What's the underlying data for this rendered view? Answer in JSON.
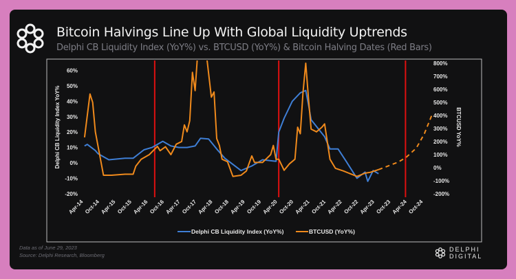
{
  "header": {
    "title": "Bitcoin Halvings Line Up With Global Liquidity Uptrends",
    "subtitle": "Delphi CB Liquidity Index (YoY%) vs. BTCUSD (YoY%) & Bitcoin Halving Dates (Red Bars)"
  },
  "footer": {
    "date_note": "Data as of June 29, 2023",
    "source": "Source: Delphi Research, Bloomberg",
    "brand": "DELPHI DIGITAL"
  },
  "colors": {
    "liquidity": "#3f7fd6",
    "btc": "#f08a1c",
    "halving": "#e01010",
    "background": "#111112",
    "page": "#d77fbe"
  },
  "chart_data": {
    "type": "line",
    "title": "Bitcoin Halvings Line Up With Global Liquidity Uptrends",
    "ylabel_left": "Delphi CB Liquidity Index YoY%",
    "ylabel_right": "BTCUSD YoY%",
    "ylim_left": [
      -20,
      60
    ],
    "ylim_right": [
      -200,
      800
    ],
    "yticks_left": [
      "60%",
      "50%",
      "40%",
      "30%",
      "20%",
      "10%",
      "0%",
      "-10%",
      "-20%"
    ],
    "yticks_right": [
      "800%",
      "700%",
      "600%",
      "500%",
      "400%",
      "300%",
      "200%",
      "100%",
      "0%",
      "-100%",
      "-200%"
    ],
    "xticks": [
      "Apr-14",
      "Oct-14",
      "Apr-15",
      "Oct-15",
      "Apr-16",
      "Oct-16",
      "Apr-17",
      "Oct-17",
      "Apr-18",
      "Oct-18",
      "Apr-19",
      "Oct-19",
      "Apr-20",
      "Oct-20",
      "Apr-21",
      "Oct-21",
      "Apr-22",
      "Oct-22",
      "Apr-23",
      "Oct-23",
      "Apr-24",
      "Oct-24"
    ],
    "x_start": "2014-04",
    "legend": [
      "Delphi CB Liquidity Index (YoY%)",
      "BTCUSD (YoY%)"
    ],
    "legend_position": "bottom",
    "halvings": [
      "2016-07",
      "2020-05",
      "2024-04"
    ],
    "series": [
      {
        "name": "Delphi CB Liquidity Index (YoY%)",
        "axis": "left",
        "points": [
          [
            "2014-05",
            11
          ],
          [
            "2014-06",
            12
          ],
          [
            "2014-09",
            8
          ],
          [
            "2014-10",
            6
          ],
          [
            "2015-02",
            2
          ],
          [
            "2015-05",
            2.5
          ],
          [
            "2015-08",
            3
          ],
          [
            "2015-11",
            3
          ],
          [
            "2016-03",
            8.5
          ],
          [
            "2016-06",
            10
          ],
          [
            "2016-08",
            12
          ],
          [
            "2016-10",
            14
          ],
          [
            "2017-01",
            11
          ],
          [
            "2017-04",
            10
          ],
          [
            "2017-07",
            10
          ],
          [
            "2017-10",
            11
          ],
          [
            "2017-12",
            16
          ],
          [
            "2018-03",
            15.5
          ],
          [
            "2018-06",
            9
          ],
          [
            "2018-09",
            3
          ],
          [
            "2018-12",
            -1
          ],
          [
            "2019-03",
            -5
          ],
          [
            "2019-07",
            -2
          ],
          [
            "2019-11",
            2
          ],
          [
            "2020-04",
            1
          ],
          [
            "2020-05",
            20
          ],
          [
            "2020-07",
            29
          ],
          [
            "2020-10",
            40
          ],
          [
            "2021-01",
            45.5
          ],
          [
            "2021-03",
            47
          ],
          [
            "2021-04",
            38
          ],
          [
            "2021-05",
            28
          ],
          [
            "2021-10",
            17
          ],
          [
            "2021-12",
            9
          ],
          [
            "2022-03",
            9
          ],
          [
            "2022-06",
            1
          ],
          [
            "2022-10",
            -10
          ],
          [
            "2023-01",
            -6
          ],
          [
            "2023-02",
            -12
          ],
          [
            "2023-04",
            -5
          ],
          [
            "2023-06",
            -7
          ]
        ]
      },
      {
        "name": "BTCUSD (YoY%)",
        "axis": "right",
        "points": [
          [
            "2014-05",
            232
          ],
          [
            "2014-07",
            565
          ],
          [
            "2014-08",
            500
          ],
          [
            "2014-09",
            275
          ],
          [
            "2014-12",
            -58
          ],
          [
            "2015-03",
            -58
          ],
          [
            "2015-08",
            -50
          ],
          [
            "2015-11",
            -50
          ],
          [
            "2015-12",
            12
          ],
          [
            "2016-02",
            65
          ],
          [
            "2016-05",
            100
          ],
          [
            "2016-08",
            163
          ],
          [
            "2016-09",
            130
          ],
          [
            "2016-11",
            160
          ],
          [
            "2017-01",
            100
          ],
          [
            "2017-03",
            180
          ],
          [
            "2017-05",
            200
          ],
          [
            "2017-06",
            328
          ],
          [
            "2017-07",
            275
          ],
          [
            "2017-08",
            360
          ],
          [
            "2017-09",
            730
          ],
          [
            "2017-10",
            590
          ],
          [
            "2017-11",
            900
          ],
          [
            "2018-02",
            900
          ],
          [
            "2018-04",
            540
          ],
          [
            "2018-05",
            580
          ],
          [
            "2018-06",
            223
          ],
          [
            "2018-07",
            170
          ],
          [
            "2018-08",
            65
          ],
          [
            "2018-10",
            45
          ],
          [
            "2018-12",
            -67
          ],
          [
            "2019-03",
            -58
          ],
          [
            "2019-05",
            -25
          ],
          [
            "2019-07",
            90
          ],
          [
            "2019-08",
            40
          ],
          [
            "2019-11",
            40
          ],
          [
            "2020-02",
            100
          ],
          [
            "2020-03",
            170
          ],
          [
            "2020-04",
            65
          ],
          [
            "2020-05",
            65
          ],
          [
            "2020-07",
            -20
          ],
          [
            "2020-09",
            30
          ],
          [
            "2020-11",
            65
          ],
          [
            "2020-12",
            310
          ],
          [
            "2021-01",
            260
          ],
          [
            "2021-02",
            575
          ],
          [
            "2021-03",
            800
          ],
          [
            "2021-04",
            535
          ],
          [
            "2021-05",
            295
          ],
          [
            "2021-07",
            275
          ],
          [
            "2021-09",
            310
          ],
          [
            "2021-10",
            335
          ],
          [
            "2021-12",
            65
          ],
          [
            "2022-02",
            -5
          ],
          [
            "2022-05",
            -25
          ],
          [
            "2022-07",
            -42
          ],
          [
            "2022-10",
            -67
          ],
          [
            "2023-01",
            -42
          ],
          [
            "2023-03",
            -35
          ],
          [
            "2023-06",
            -15
          ]
        ]
      },
      {
        "name": "BTCUSD projection",
        "axis": "right",
        "dashed": true,
        "points": [
          [
            "2023-06",
            -15
          ],
          [
            "2024-01",
            40
          ],
          [
            "2024-04",
            75
          ],
          [
            "2024-08",
            150
          ],
          [
            "2024-11",
            260
          ],
          [
            "2025-02",
            415
          ]
        ]
      }
    ]
  }
}
